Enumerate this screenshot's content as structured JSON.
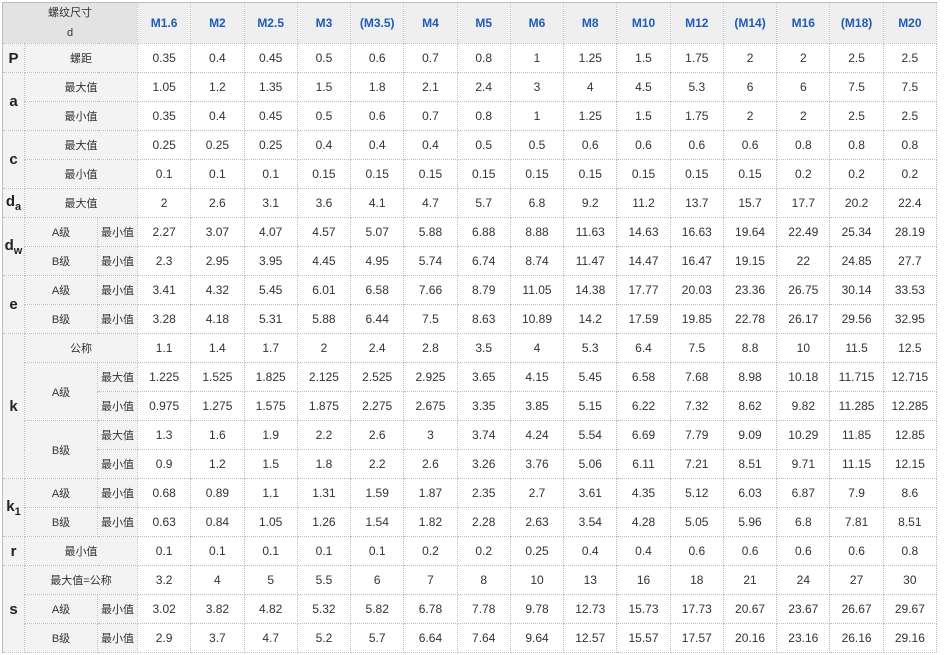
{
  "header": {
    "corner_line1": "螺纹尺寸",
    "corner_line2": "d",
    "sizes": [
      "M1.6",
      "M2",
      "M2.5",
      "M3",
      "(M3.5)",
      "M4",
      "M5",
      "M6",
      "M8",
      "M10",
      "M12",
      "(M14)",
      "M16",
      "(M18)",
      "M20"
    ]
  },
  "colors": {
    "header_text": "#1f5bb8",
    "label_bg": "#f3f3f3",
    "header_bg": "#efefef"
  },
  "groups": [
    {
      "symbol": "P",
      "sub": "",
      "rows": [
        {
          "grade": "",
          "label": "螺距",
          "values": [
            "0.35",
            "0.4",
            "0.45",
            "0.5",
            "0.6",
            "0.7",
            "0.8",
            "1",
            "1.25",
            "1.5",
            "1.75",
            "2",
            "2",
            "2.5",
            "2.5"
          ]
        }
      ]
    },
    {
      "symbol": "a",
      "sub": "",
      "rows": [
        {
          "grade": "",
          "label": "最大值",
          "values": [
            "1.05",
            "1.2",
            "1.35",
            "1.5",
            "1.8",
            "2.1",
            "2.4",
            "3",
            "4",
            "4.5",
            "5.3",
            "6",
            "6",
            "7.5",
            "7.5"
          ]
        },
        {
          "grade": "",
          "label": "最小值",
          "values": [
            "0.35",
            "0.4",
            "0.45",
            "0.5",
            "0.6",
            "0.7",
            "0.8",
            "1",
            "1.25",
            "1.5",
            "1.75",
            "2",
            "2",
            "2.5",
            "2.5"
          ]
        }
      ]
    },
    {
      "symbol": "c",
      "sub": "",
      "rows": [
        {
          "grade": "",
          "label": "最大值",
          "values": [
            "0.25",
            "0.25",
            "0.25",
            "0.4",
            "0.4",
            "0.4",
            "0.5",
            "0.5",
            "0.6",
            "0.6",
            "0.6",
            "0.6",
            "0.8",
            "0.8",
            "0.8"
          ]
        },
        {
          "grade": "",
          "label": "最小值",
          "values": [
            "0.1",
            "0.1",
            "0.1",
            "0.15",
            "0.15",
            "0.15",
            "0.15",
            "0.15",
            "0.15",
            "0.15",
            "0.15",
            "0.15",
            "0.2",
            "0.2",
            "0.2"
          ]
        }
      ]
    },
    {
      "symbol": "d",
      "sub": "a",
      "rows": [
        {
          "grade": "",
          "label": "最大值",
          "values": [
            "2",
            "2.6",
            "3.1",
            "3.6",
            "4.1",
            "4.7",
            "5.7",
            "6.8",
            "9.2",
            "11.2",
            "13.7",
            "15.7",
            "17.7",
            "20.2",
            "22.4"
          ]
        }
      ]
    },
    {
      "symbol": "d",
      "sub": "w",
      "rows": [
        {
          "grade": "A级",
          "label": "最小值",
          "values": [
            "2.27",
            "3.07",
            "4.07",
            "4.57",
            "5.07",
            "5.88",
            "6.88",
            "8.88",
            "11.63",
            "14.63",
            "16.63",
            "19.64",
            "22.49",
            "25.34",
            "28.19"
          ]
        },
        {
          "grade": "B级",
          "label": "最小值",
          "values": [
            "2.3",
            "2.95",
            "3.95",
            "4.45",
            "4.95",
            "5.74",
            "6.74",
            "8.74",
            "11.47",
            "14.47",
            "16.47",
            "19.15",
            "22",
            "24.85",
            "27.7"
          ]
        }
      ]
    },
    {
      "symbol": "e",
      "sub": "",
      "rows": [
        {
          "grade": "A级",
          "label": "最小值",
          "values": [
            "3.41",
            "4.32",
            "5.45",
            "6.01",
            "6.58",
            "7.66",
            "8.79",
            "11.05",
            "14.38",
            "17.77",
            "20.03",
            "23.36",
            "26.75",
            "30.14",
            "33.53"
          ]
        },
        {
          "grade": "B级",
          "label": "最小值",
          "values": [
            "3.28",
            "4.18",
            "5.31",
            "5.88",
            "6.44",
            "7.5",
            "8.63",
            "10.89",
            "14.2",
            "17.59",
            "19.85",
            "22.78",
            "26.17",
            "29.56",
            "32.95"
          ]
        }
      ]
    },
    {
      "symbol": "k",
      "sub": "",
      "rows": [
        {
          "grade": "",
          "label": "公称",
          "values": [
            "1.1",
            "1.4",
            "1.7",
            "2",
            "2.4",
            "2.8",
            "3.5",
            "4",
            "5.3",
            "6.4",
            "7.5",
            "8.8",
            "10",
            "11.5",
            "12.5"
          ]
        },
        {
          "grade": "A级",
          "label": "最大值",
          "values": [
            "1.225",
            "1.525",
            "1.825",
            "2.125",
            "2.525",
            "2.925",
            "3.65",
            "4.15",
            "5.45",
            "6.58",
            "7.68",
            "8.98",
            "10.18",
            "11.715",
            "12.715"
          ]
        },
        {
          "grade": "A级",
          "label": "最小值",
          "values": [
            "0.975",
            "1.275",
            "1.575",
            "1.875",
            "2.275",
            "2.675",
            "3.35",
            "3.85",
            "5.15",
            "6.22",
            "7.32",
            "8.62",
            "9.82",
            "11.285",
            "12.285"
          ]
        },
        {
          "grade": "B级",
          "label": "最大值",
          "values": [
            "1.3",
            "1.6",
            "1.9",
            "2.2",
            "2.6",
            "3",
            "3.74",
            "4.24",
            "5.54",
            "6.69",
            "7.79",
            "9.09",
            "10.29",
            "11.85",
            "12.85"
          ]
        },
        {
          "grade": "B级",
          "label": "最小值",
          "values": [
            "0.9",
            "1.2",
            "1.5",
            "1.8",
            "2.2",
            "2.6",
            "3.26",
            "3.76",
            "5.06",
            "6.11",
            "7.21",
            "8.51",
            "9.71",
            "11.15",
            "12.15"
          ]
        }
      ]
    },
    {
      "symbol": "k",
      "sub": "1",
      "rows": [
        {
          "grade": "A级",
          "label": "最小值",
          "values": [
            "0.68",
            "0.89",
            "1.1",
            "1.31",
            "1.59",
            "1.87",
            "2.35",
            "2.7",
            "3.61",
            "4.35",
            "5.12",
            "6.03",
            "6.87",
            "7.9",
            "8.6"
          ]
        },
        {
          "grade": "B级",
          "label": "最小值",
          "values": [
            "0.63",
            "0.84",
            "1.05",
            "1.26",
            "1.54",
            "1.82",
            "2.28",
            "2.63",
            "3.54",
            "4.28",
            "5.05",
            "5.96",
            "6.8",
            "7.81",
            "8.51"
          ]
        }
      ]
    },
    {
      "symbol": "r",
      "sub": "",
      "rows": [
        {
          "grade": "",
          "label": "最小值",
          "values": [
            "0.1",
            "0.1",
            "0.1",
            "0.1",
            "0.1",
            "0.2",
            "0.2",
            "0.25",
            "0.4",
            "0.4",
            "0.6",
            "0.6",
            "0.6",
            "0.6",
            "0.8"
          ]
        }
      ]
    },
    {
      "symbol": "s",
      "sub": "",
      "rows": [
        {
          "grade": "",
          "label": "最大值=公称",
          "values": [
            "3.2",
            "4",
            "5",
            "5.5",
            "6",
            "7",
            "8",
            "10",
            "13",
            "16",
            "18",
            "21",
            "24",
            "27",
            "30"
          ]
        },
        {
          "grade": "A级",
          "label": "最小值",
          "values": [
            "3.02",
            "3.82",
            "4.82",
            "5.32",
            "5.82",
            "6.78",
            "7.78",
            "9.78",
            "12.73",
            "15.73",
            "17.73",
            "20.67",
            "23.67",
            "26.67",
            "29.67"
          ]
        },
        {
          "grade": "B级",
          "label": "最小值",
          "values": [
            "2.9",
            "3.7",
            "4.7",
            "5.2",
            "5.7",
            "6.64",
            "7.64",
            "9.64",
            "12.57",
            "15.57",
            "17.57",
            "20.16",
            "23.16",
            "26.16",
            "29.16"
          ]
        }
      ]
    }
  ]
}
